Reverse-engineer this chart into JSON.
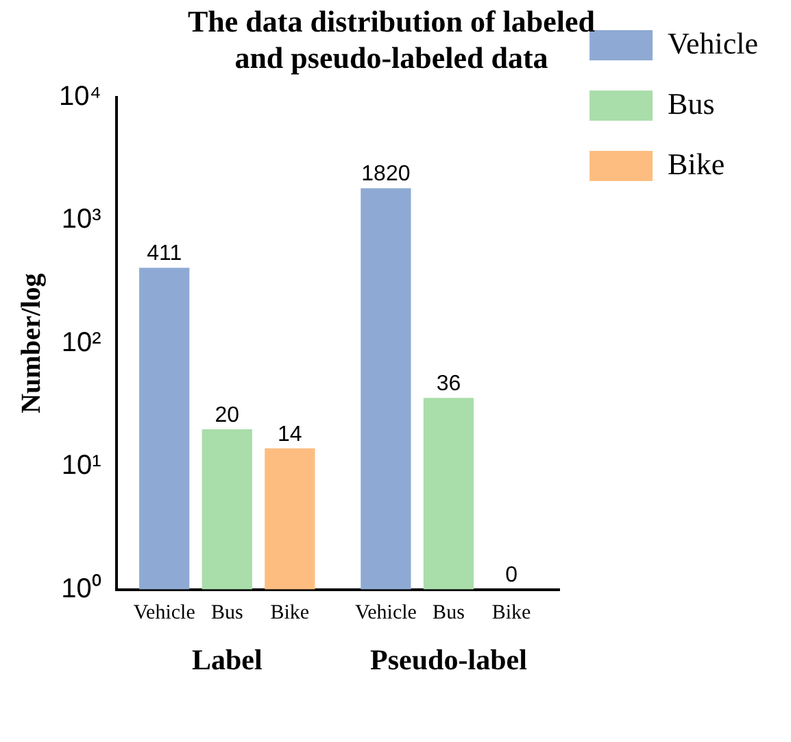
{
  "chart_data": {
    "type": "bar",
    "title": "The data distribution of labeled and pseudo-labeled data",
    "ylabel": "Number/log",
    "categories": [
      "Label",
      "Pseudo-label"
    ],
    "series": [
      {
        "name": "Vehicle",
        "color": "#8eaad4",
        "values": [
          411,
          1820
        ]
      },
      {
        "name": "Bus",
        "color": "#a9ddaa",
        "values": [
          20,
          36
        ]
      },
      {
        "name": "Bike",
        "color": "#fdbd80",
        "values": [
          14,
          null
        ]
      }
    ],
    "log": "y",
    "ylim": [
      1,
      10000
    ],
    "yticks": [
      {
        "value": 1,
        "label": "10⁰"
      },
      {
        "value": 10,
        "label": "10¹"
      },
      {
        "value": 100,
        "label": "10²"
      },
      {
        "value": 1000,
        "label": "10³"
      },
      {
        "value": 10000,
        "label": "10⁴"
      }
    ],
    "annotations": [
      {
        "text": "0",
        "x": "Pseudo-label",
        "y": 1
      }
    ],
    "data_labels": true,
    "grid": false,
    "legend": "top right"
  }
}
